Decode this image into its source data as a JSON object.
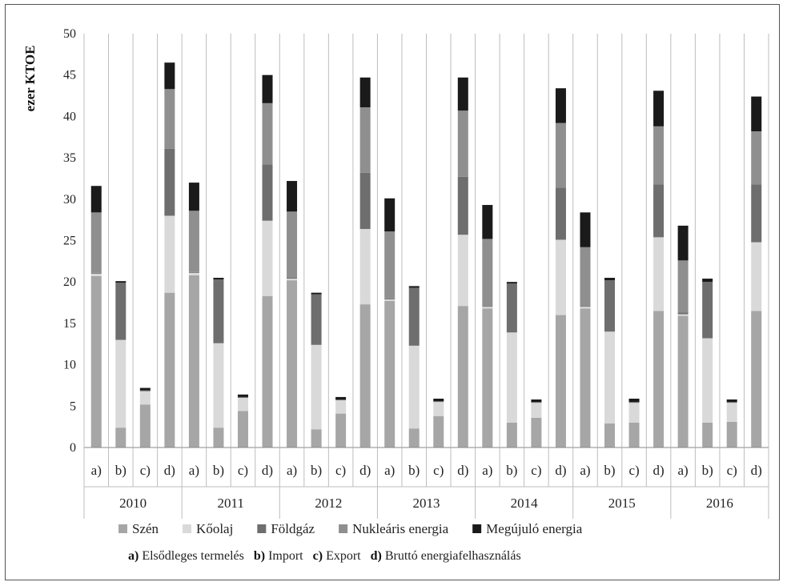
{
  "chart_data": {
    "type": "bar",
    "stacked": true,
    "ylabel": "ezer KTOE",
    "ylim": [
      0,
      50
    ],
    "yticks": [
      0,
      5,
      10,
      15,
      20,
      25,
      30,
      35,
      40,
      45,
      50
    ],
    "grid": "vertical",
    "legend_position": "bottom",
    "groups": [
      "2010",
      "2011",
      "2012",
      "2013",
      "2014",
      "2015",
      "2016"
    ],
    "sub_categories": [
      "a)",
      "b)",
      "c)",
      "d)"
    ],
    "series": [
      {
        "name": "Szén",
        "color": "#a6a6a6",
        "values": [
          20.7,
          2.4,
          5.2,
          18.7,
          20.8,
          2.4,
          4.4,
          18.3,
          20.2,
          2.2,
          4.1,
          17.3,
          17.7,
          2.3,
          3.8,
          17.1,
          16.8,
          3.0,
          3.6,
          16.0,
          16.8,
          2.9,
          3.0,
          16.5,
          15.9,
          3.0,
          3.1,
          16.5
        ]
      },
      {
        "name": "Kőolaj",
        "color": "#d9d9d9",
        "values": [
          0.3,
          10.6,
          1.6,
          9.3,
          0.3,
          10.2,
          1.6,
          9.1,
          0.2,
          10.2,
          1.6,
          9.1,
          0.2,
          10.0,
          1.7,
          8.6,
          0.2,
          10.9,
          1.8,
          9.1,
          0.2,
          11.1,
          2.4,
          8.9,
          0.2,
          10.2,
          2.3,
          8.3
        ]
      },
      {
        "name": "Földgáz",
        "color": "#6e6e6e",
        "values": [
          0.1,
          6.9,
          0.1,
          8.1,
          0.1,
          7.7,
          0.1,
          6.8,
          0.1,
          6.1,
          0.1,
          6.8,
          0.1,
          7.0,
          0.1,
          7.0,
          0.1,
          5.9,
          0.1,
          6.3,
          0.1,
          6.2,
          0.1,
          6.4,
          0.2,
          6.8,
          0.1,
          7.0
        ]
      },
      {
        "name": "Nukleáris energia",
        "color": "#8f8f8f",
        "values": [
          7.3,
          0.0,
          0.0,
          7.2,
          7.4,
          0.0,
          0.0,
          7.4,
          8.0,
          0.0,
          0.0,
          7.9,
          8.1,
          0.0,
          0.0,
          8.0,
          8.1,
          0.0,
          0.0,
          7.8,
          7.1,
          0.0,
          0.0,
          7.0,
          6.3,
          0.0,
          0.0,
          6.4
        ]
      },
      {
        "name": "Megújuló energia",
        "color": "#1a1a1a",
        "values": [
          3.2,
          0.2,
          0.3,
          3.2,
          3.4,
          0.2,
          0.3,
          3.4,
          3.7,
          0.2,
          0.3,
          3.6,
          4.0,
          0.2,
          0.3,
          4.0,
          4.1,
          0.2,
          0.3,
          4.2,
          4.2,
          0.3,
          0.4,
          4.3,
          4.2,
          0.4,
          0.3,
          4.2
        ]
      }
    ],
    "notes": [
      {
        "key": "a)",
        "text": "Elsődleges termelés"
      },
      {
        "key": "b)",
        "text": "Import"
      },
      {
        "key": "c)",
        "text": "Export"
      },
      {
        "key": "d)",
        "text": "Bruttó energiafelhasználás"
      }
    ]
  }
}
